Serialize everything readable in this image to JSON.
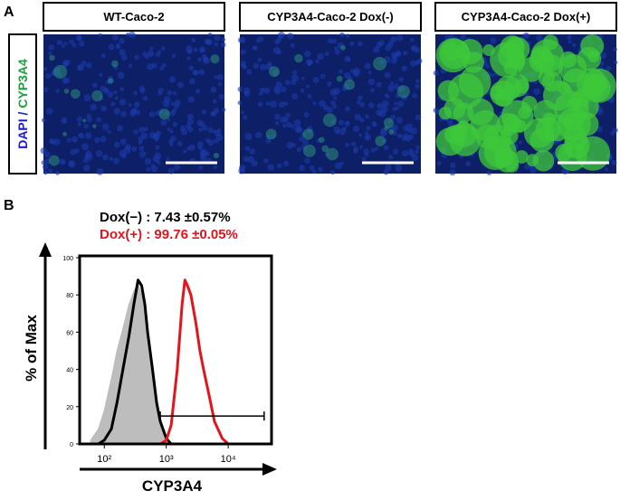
{
  "panel_a": {
    "label": "A",
    "y_label_parts": [
      "DAPI",
      " / ",
      "CYP3A4"
    ],
    "panels": [
      "WT-Caco-2",
      "CYP3A4-Caco-2  Dox(-)",
      "CYP3A4-Caco-2 Dox(+)"
    ]
  },
  "chart_data": {
    "type": "line",
    "panel_label": "B",
    "annotations": [
      {
        "text": "Dox(−) :  7.43 ±0.57%",
        "color": "#000000"
      },
      {
        "text": "Dox(+) : 99.76 ±0.05%",
        "color": "#e3141b"
      }
    ],
    "xlabel": "CYP3A4",
    "ylabel": "% of Max",
    "log_x": true,
    "xlim": [
      40,
      50000
    ],
    "xticks": [
      {
        "value": 100,
        "label": "10²"
      },
      {
        "value": 1000,
        "label": "10³"
      },
      {
        "value": 10000,
        "label": "10⁴"
      }
    ],
    "ylim": [
      0,
      100
    ],
    "yticks": [
      0,
      20,
      40,
      60,
      80,
      100
    ],
    "x": [
      60,
      80,
      100,
      130,
      160,
      200,
      250,
      300,
      350,
      400,
      450,
      500,
      600,
      700,
      800,
      1000,
      1200,
      1500,
      1800,
      2000,
      2200,
      2500,
      3000,
      3500,
      4000,
      5000,
      6000,
      8000,
      10000
    ],
    "series": [
      {
        "color": "#bdbdbd",
        "filled": true,
        "values": [
          2,
          8,
          18,
          35,
          50,
          62,
          75,
          82,
          86,
          80,
          68,
          55,
          35,
          20,
          10,
          3,
          0,
          0,
          0,
          0,
          0,
          0,
          0,
          0,
          0,
          0,
          0,
          0,
          0
        ]
      },
      {
        "color": "#000000",
        "filled": false,
        "values": [
          0,
          0,
          2,
          8,
          22,
          40,
          58,
          75,
          88,
          85,
          75,
          60,
          40,
          22,
          12,
          3,
          0,
          0,
          0,
          0,
          0,
          0,
          0,
          0,
          0,
          0,
          0,
          0,
          0
        ]
      },
      {
        "color": "#e3141b",
        "filled": false,
        "values": [
          0,
          0,
          0,
          0,
          0,
          0,
          0,
          0,
          0,
          0,
          0,
          0,
          0,
          0,
          0,
          2,
          10,
          40,
          75,
          88,
          85,
          80,
          65,
          50,
          40,
          25,
          12,
          3,
          0
        ]
      }
    ],
    "gate": {
      "x": [
        800,
        38000
      ],
      "y": 15
    }
  }
}
